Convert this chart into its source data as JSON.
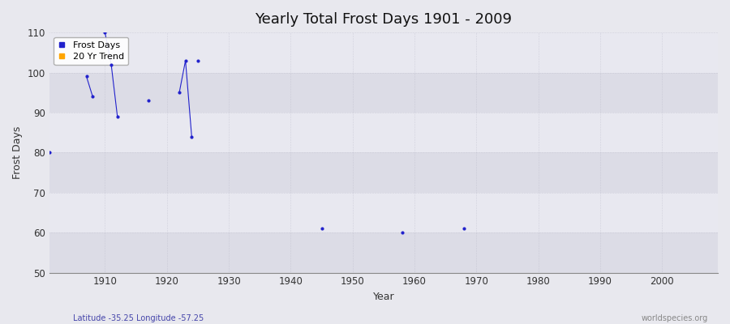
{
  "title": "Yearly Total Frost Days 1901 - 2009",
  "xlabel": "Year",
  "ylabel": "Frost Days",
  "xlim": [
    1901,
    2009
  ],
  "ylim": [
    50,
    110
  ],
  "yticks": [
    50,
    60,
    70,
    80,
    90,
    100,
    110
  ],
  "xticks": [
    1910,
    1920,
    1930,
    1940,
    1950,
    1960,
    1970,
    1980,
    1990,
    2000
  ],
  "bg_color": "#e8e8ee",
  "band_colors": [
    "#dcdce6",
    "#e8e8f0"
  ],
  "frost_color": "#2222cc",
  "trend_color": "#ffa500",
  "subtitle_left": "Latitude -35.25 Longitude -57.25",
  "subtitle_right": "worldspecies.org",
  "subtitle_color": "#4444aa",
  "segments": [
    {
      "x": [
        1907,
        1908
      ],
      "y": [
        99,
        94
      ]
    },
    {
      "x": [
        1910,
        1911,
        1912
      ],
      "y": [
        110,
        102,
        89
      ]
    },
    {
      "x": [
        1922,
        1923,
        1924
      ],
      "y": [
        95,
        103,
        84
      ]
    }
  ],
  "isolated_x": [
    1901,
    1917,
    1925,
    1945,
    1958,
    1968
  ],
  "isolated_y": [
    80,
    93,
    103,
    61,
    60,
    61
  ]
}
